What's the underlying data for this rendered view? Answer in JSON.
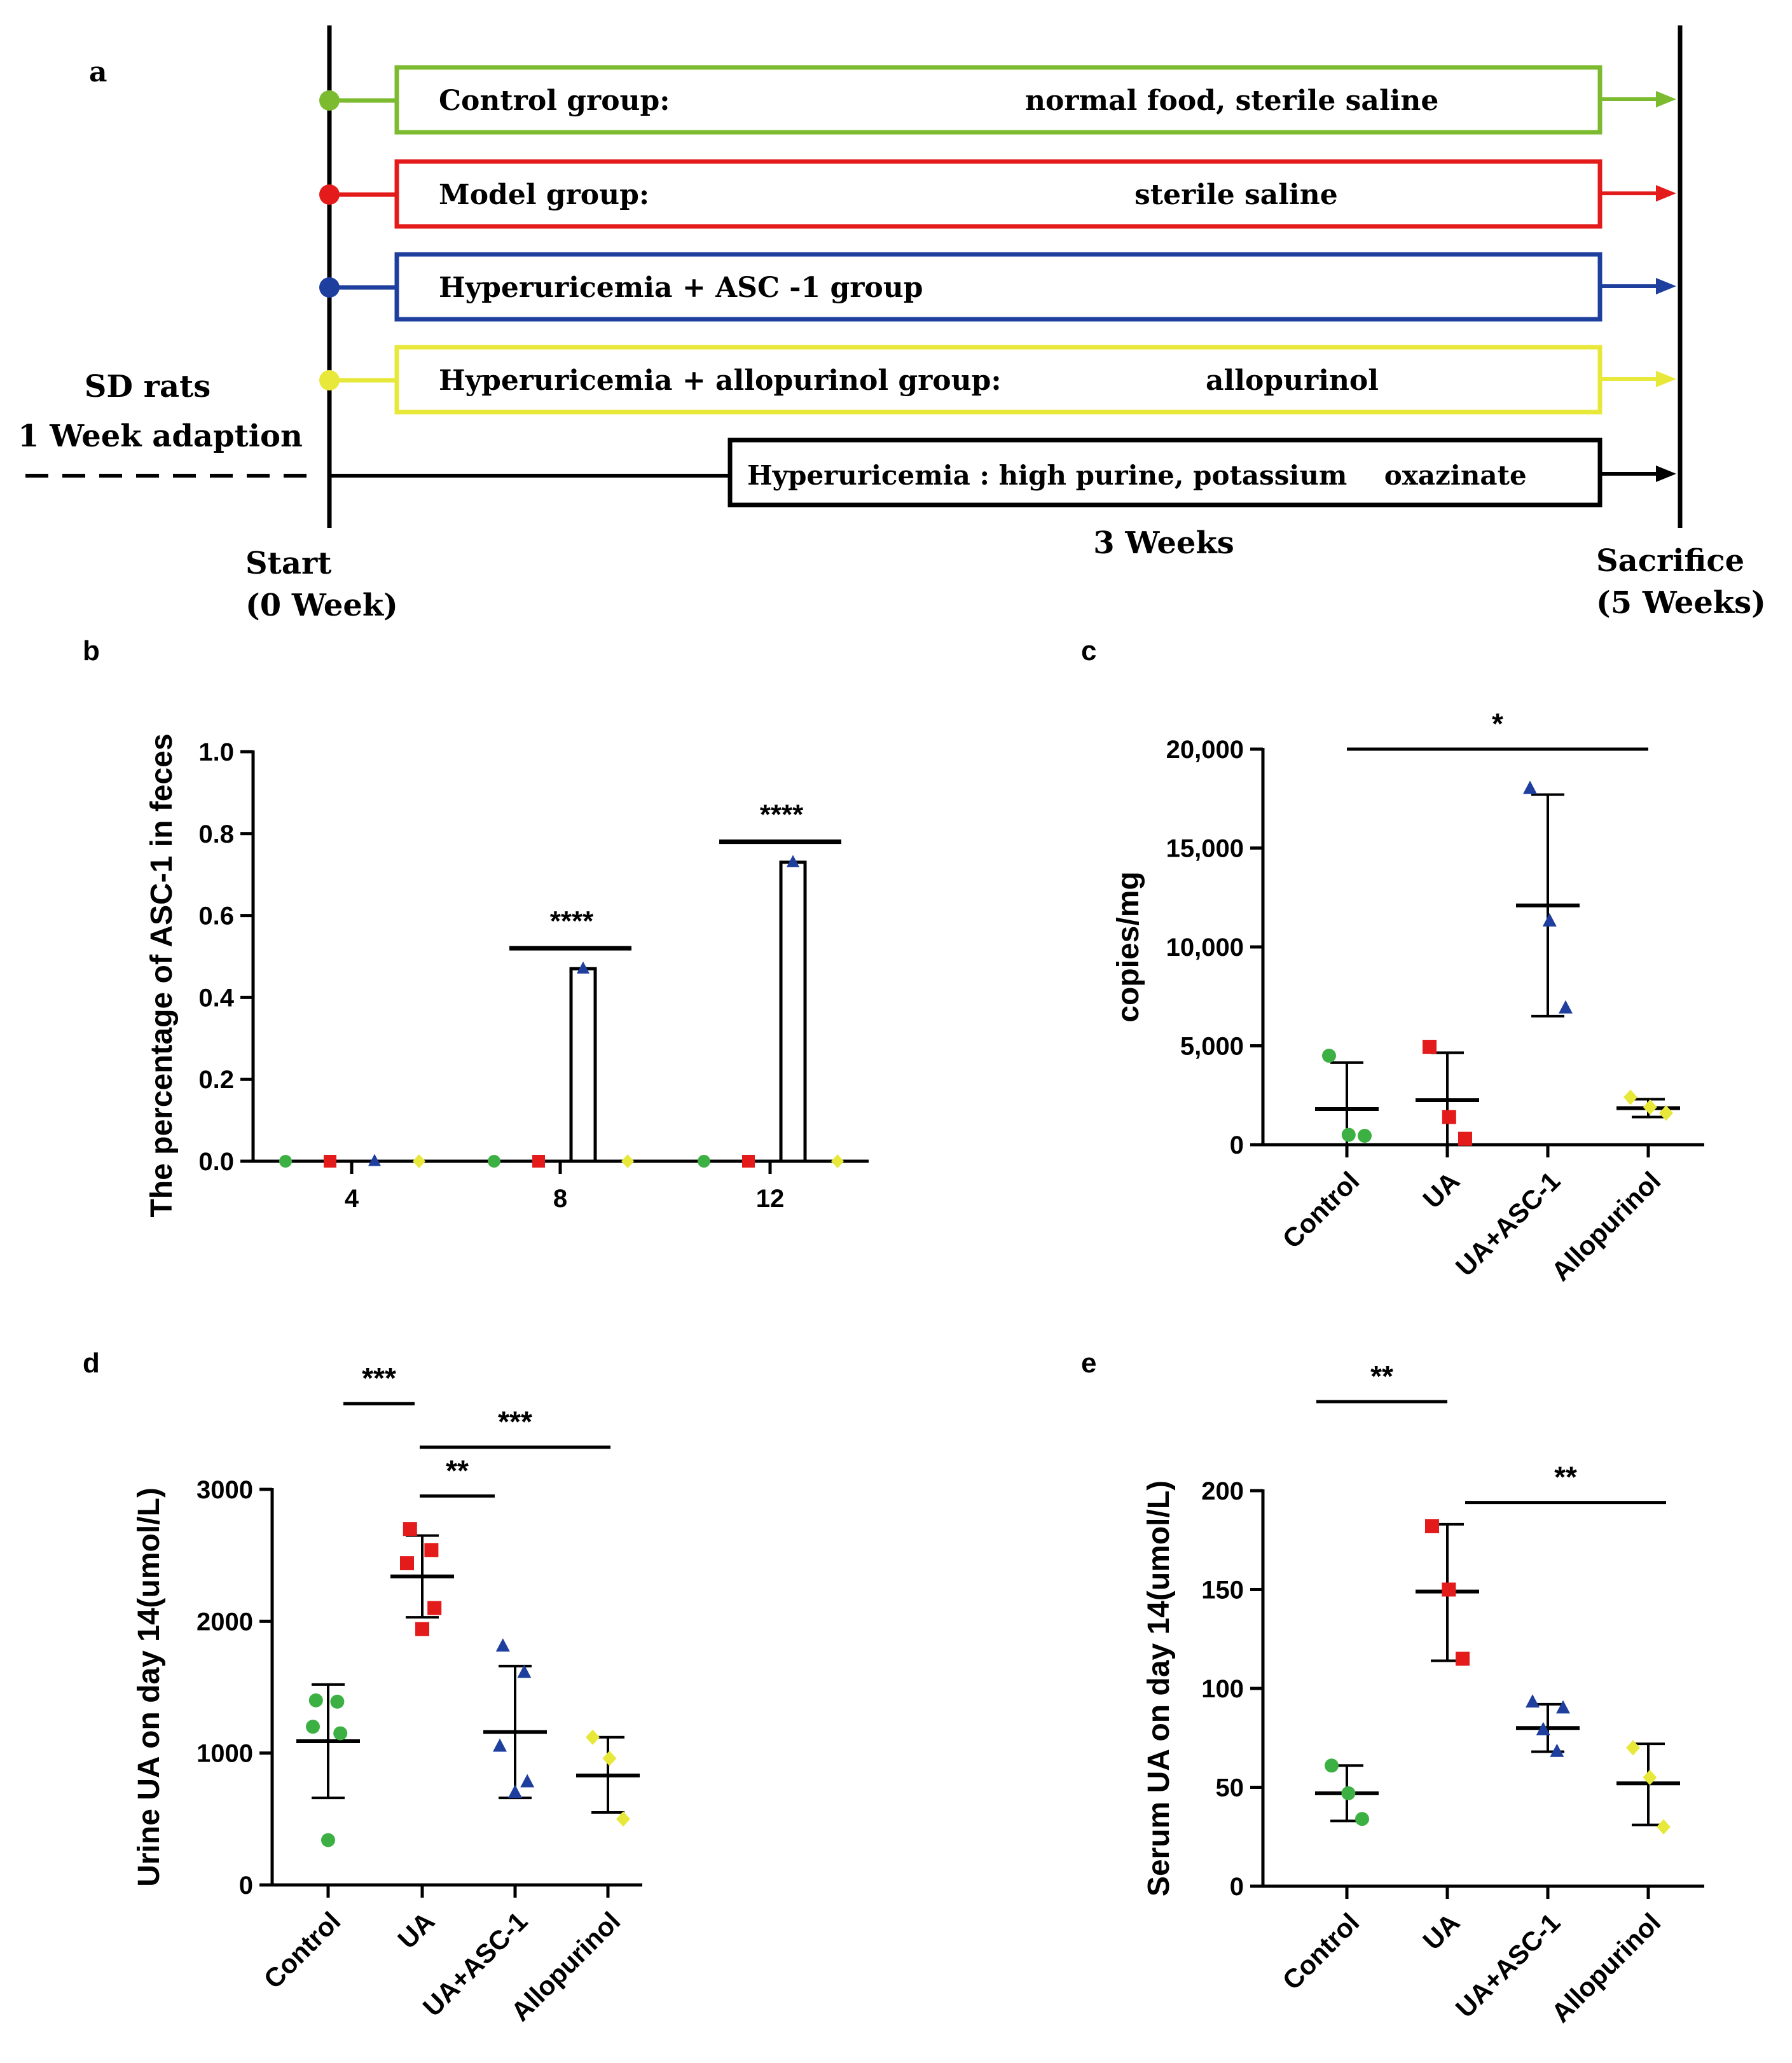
{
  "colors": {
    "control": "#7cbb2f",
    "control_marker": "#3cb043",
    "model": "#e31b1b",
    "asc": "#1f3f9e",
    "allopurinol": "#e8e83a",
    "black": "#000000"
  },
  "panel_a": {
    "label": "a",
    "groups": [
      {
        "name": "Control group:",
        "detail": "normal food, sterile saline",
        "color": "#7cbb2f"
      },
      {
        "name": "Model group:",
        "detail": "sterile saline",
        "color": "#e31b1b"
      },
      {
        "name": "Hyperuricemia  + ASC -1  group",
        "detail": "",
        "color": "#1f3f9e"
      },
      {
        "name": "Hyperuricemia  + allopurinol  group:",
        "detail": "allopurinol",
        "color": "#e8e83a"
      }
    ],
    "hyperuricemia_box": "Hyperuricemia : high purine, potassium    oxazinate",
    "adaptation_line1": "SD rats",
    "adaptation_line2": "1 Week adaption",
    "start_line1": "Start",
    "start_line2": "(0 Week)",
    "duration": "3 Weeks",
    "end_line1": "Sacrifice",
    "end_line2": "(5 Weeks)"
  },
  "chart_data": [
    {
      "panel": "b",
      "type": "bar",
      "ylabel": "The percentage of ASC-1 in feces",
      "xlabel": "",
      "ylim": [
        0,
        1.0
      ],
      "yticks": [
        "0.0",
        "0.2",
        "0.4",
        "0.6",
        "0.8",
        "1.0"
      ],
      "categories": [
        "4",
        "8",
        "12"
      ],
      "series": [
        {
          "name": "",
          "color": "#3cb043",
          "marker": "circle",
          "values": [
            0,
            0,
            0
          ]
        },
        {
          "name": "",
          "color": "#e31b1b",
          "marker": "square",
          "values": [
            0,
            0,
            0
          ]
        },
        {
          "name": "",
          "color": "#1f3f9e",
          "marker": "triangle",
          "values": [
            0,
            0.47,
            0.73
          ]
        },
        {
          "name": "",
          "color": "#e8e83a",
          "marker": "diamond",
          "values": [
            0,
            0,
            0
          ]
        }
      ],
      "significance": [
        {
          "category": "8",
          "label": "****",
          "y": 0.52
        },
        {
          "category": "12",
          "label": "****",
          "y": 0.78
        }
      ]
    },
    {
      "panel": "c",
      "type": "scatter",
      "ylabel": "copies/mg",
      "ylim": [
        0,
        20000
      ],
      "yticks": [
        "0",
        "5,000",
        "10,000",
        "15,000",
        "20,000"
      ],
      "categories": [
        "Control",
        "UA",
        "UA+ASC-1",
        "Allopurinol"
      ],
      "groups": [
        {
          "name": "Control",
          "color": "#3cb043",
          "marker": "circle",
          "points": [
            4500,
            500,
            450
          ],
          "mean": 1800,
          "sd_low": 0,
          "sd_high": 4150
        },
        {
          "name": "UA",
          "color": "#e31b1b",
          "marker": "square",
          "points": [
            4950,
            1400,
            300
          ],
          "mean": 2250,
          "sd_low": 0,
          "sd_high": 4650
        },
        {
          "name": "UA+ASC-1",
          "color": "#1f3f9e",
          "marker": "triangle",
          "points": [
            18000,
            11300,
            6900
          ],
          "mean": 12100,
          "sd_low": 6500,
          "sd_high": 17700
        },
        {
          "name": "Allopurinol",
          "color": "#e8e83a",
          "marker": "diamond",
          "points": [
            2400,
            1900,
            1600
          ],
          "mean": 1850,
          "sd_low": 1400,
          "sd_high": 2300
        }
      ],
      "significance": [
        {
          "from": 0,
          "to": 3,
          "label": "*",
          "y": 20000
        }
      ]
    },
    {
      "panel": "d",
      "type": "scatter",
      "ylabel": "Urine UA on day 14(umol/L)",
      "ylim": [
        0,
        3000
      ],
      "yticks": [
        "0",
        "1000",
        "2000",
        "3000"
      ],
      "categories": [
        "Control",
        "UA",
        "UA+ASC-1",
        "Allopurinol"
      ],
      "groups": [
        {
          "name": "Control",
          "color": "#3cb043",
          "marker": "circle",
          "points": [
            1400,
            1390,
            1200,
            1150,
            340
          ],
          "mean": 1090,
          "sd_low": 660,
          "sd_high": 1520
        },
        {
          "name": "UA",
          "color": "#e31b1b",
          "marker": "square",
          "points": [
            2700,
            2540,
            2440,
            2100,
            1940
          ],
          "mean": 2340,
          "sd_low": 2030,
          "sd_high": 2650
        },
        {
          "name": "UA+ASC-1",
          "color": "#1f3f9e",
          "marker": "triangle",
          "points": [
            1810,
            1610,
            1050,
            780,
            700
          ],
          "mean": 1160,
          "sd_low": 660,
          "sd_high": 1660
        },
        {
          "name": "Allopurinol",
          "color": "#e8e83a",
          "marker": "diamond",
          "points": [
            1120,
            960,
            500
          ],
          "mean": 830,
          "sd_low": 550,
          "sd_high": 1120
        }
      ],
      "significance": [
        {
          "from": 0,
          "to": 1,
          "label": "***",
          "y": 3650
        },
        {
          "from": 1,
          "to": 3,
          "label": "***",
          "y": 3320
        },
        {
          "from": 1,
          "to": 2,
          "label": "**",
          "y": 2950
        }
      ]
    },
    {
      "panel": "e",
      "type": "scatter",
      "ylabel": "Serum UA on day 14(umol/L)",
      "ylim": [
        0,
        200
      ],
      "yticks": [
        "0",
        "50",
        "100",
        "150",
        "200"
      ],
      "categories": [
        "Control",
        "UA",
        "UA+ASC-1",
        "Allopurinol"
      ],
      "groups": [
        {
          "name": "Control",
          "color": "#3cb043",
          "marker": "circle",
          "points": [
            61,
            47,
            34
          ],
          "mean": 47,
          "sd_low": 33,
          "sd_high": 61
        },
        {
          "name": "UA",
          "color": "#e31b1b",
          "marker": "square",
          "points": [
            182,
            150,
            115
          ],
          "mean": 149,
          "sd_low": 114,
          "sd_high": 183
        },
        {
          "name": "UA+ASC-1",
          "color": "#1f3f9e",
          "marker": "triangle",
          "points": [
            93,
            90,
            79,
            68
          ],
          "mean": 80,
          "sd_low": 68,
          "sd_high": 92
        },
        {
          "name": "Allopurinol",
          "color": "#e8e83a",
          "marker": "diamond",
          "points": [
            70,
            55,
            30
          ],
          "mean": 52,
          "sd_low": 31,
          "sd_high": 72
        }
      ],
      "significance": [
        {
          "from": 0,
          "to": 1,
          "label": "**",
          "y": 245
        },
        {
          "from": 1,
          "to": 3,
          "label": "**",
          "y": 194
        }
      ]
    }
  ]
}
